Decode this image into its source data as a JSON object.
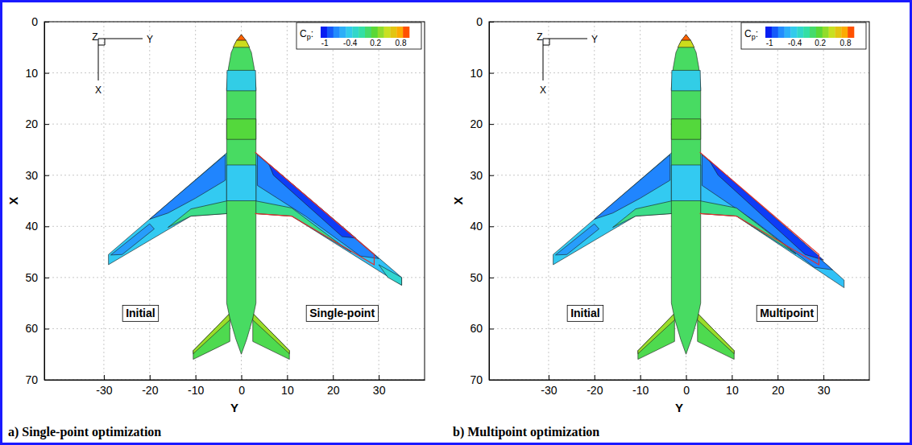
{
  "chart_data": [
    {
      "type": "contour",
      "title": "a) Single-point optimization",
      "xlabel": "Y",
      "ylabel": "X",
      "xlim": [
        -43,
        40
      ],
      "ylim": [
        0,
        70
      ],
      "xticks": [
        -30,
        -20,
        -10,
        0,
        10,
        20,
        30
      ],
      "yticks": [
        0,
        10,
        20,
        30,
        40,
        50,
        60,
        70
      ],
      "grid": true,
      "triad": {
        "z": "Z",
        "y": "Y",
        "x": "X"
      },
      "colorbar": {
        "label": "Cp:",
        "range": [
          -1.1,
          1.0
        ],
        "ticks": [
          -1,
          -0.4,
          0.2,
          0.8
        ]
      },
      "annotations": [
        {
          "text": "Initial",
          "x": -22,
          "y": 57
        },
        {
          "text": "Single-point",
          "x": 22,
          "y": 57
        }
      ],
      "regions": [
        {
          "points": [
            [
              -3,
              25.5
            ],
            [
              -29,
              45.5
            ],
            [
              -29,
              47.5
            ],
            [
              -11,
              38
            ],
            [
              -3,
              37.5
            ]
          ],
          "value": -0.45
        },
        {
          "points": [
            [
              -3.5,
              26
            ],
            [
              -14,
              34
            ],
            [
              -20,
              38.6
            ],
            [
              -16,
              37.4
            ],
            [
              -10,
              34.5
            ],
            [
              -3.5,
              31
            ]
          ],
          "value": -0.75
        },
        {
          "points": [
            [
              -20,
              39.5
            ],
            [
              -28.5,
              45.6
            ],
            [
              -26,
              45.5
            ],
            [
              -19,
              40.5
            ]
          ],
          "value": -0.65
        },
        {
          "points": [
            [
              -3,
              35
            ],
            [
              -11,
              36.6
            ],
            [
              -16,
              40.2
            ],
            [
              -11,
              38
            ],
            [
              -3,
              37.5
            ]
          ],
          "value": -0.05
        },
        {
          "points": [
            [
              3,
              25.5
            ],
            [
              35,
              50
            ],
            [
              35,
              51.5
            ],
            [
              11,
              38
            ],
            [
              3,
              37.5
            ]
          ],
          "value": -0.5
        },
        {
          "points": [
            [
              3.5,
              26
            ],
            [
              30,
              46.3
            ],
            [
              26,
              45.8
            ],
            [
              14,
              38
            ],
            [
              3.5,
              32
            ]
          ],
          "value": -0.75
        },
        {
          "points": [
            [
              6,
              27.8
            ],
            [
              25,
              42.3
            ],
            [
              22,
              42
            ],
            [
              7,
              30
            ]
          ],
          "value": -0.95
        },
        {
          "points": [
            [
              3,
              35
            ],
            [
              11,
              36.4
            ],
            [
              22,
              43.8
            ],
            [
              24,
              45
            ],
            [
              11,
              38
            ],
            [
              3,
              37.5
            ]
          ],
          "value": -0.05
        },
        {
          "points": [
            [
              30,
              47.5
            ],
            [
              35,
              50
            ],
            [
              35,
              51.5
            ],
            [
              32,
              50
            ]
          ],
          "value": -0.3
        },
        {
          "points": [
            [
              -2.5,
              57
            ],
            [
              -10.5,
              64.3
            ],
            [
              -10.5,
              66
            ],
            [
              -2.5,
              62.5
            ]
          ],
          "value": 0.1
        },
        {
          "points": [
            [
              -2.5,
              57
            ],
            [
              -10.5,
              64.3
            ],
            [
              -10.5,
              64.9
            ],
            [
              -2.5,
              58.3
            ]
          ],
          "value": 0.35
        },
        {
          "points": [
            [
              2.5,
              57
            ],
            [
              10.5,
              64.3
            ],
            [
              10.5,
              66
            ],
            [
              2.5,
              62.5
            ]
          ],
          "value": 0.1
        },
        {
          "points": [
            [
              2.5,
              57
            ],
            [
              10.5,
              64.3
            ],
            [
              10.5,
              64.9
            ],
            [
              2.5,
              58.3
            ]
          ],
          "value": 0.35
        },
        {
          "points": [
            [
              0,
              2.5
            ],
            [
              1.2,
              4
            ],
            [
              2.2,
              6
            ],
            [
              2.8,
              9
            ],
            [
              3.2,
              13
            ],
            [
              3.2,
              55
            ],
            [
              2.5,
              58
            ],
            [
              1.2,
              62
            ],
            [
              0,
              65
            ],
            [
              -1.2,
              62
            ],
            [
              -2.5,
              58
            ],
            [
              -3.2,
              55
            ],
            [
              -3.2,
              13
            ],
            [
              -2.8,
              9
            ],
            [
              -2.2,
              6
            ],
            [
              -1.2,
              4
            ]
          ],
          "value": 0.05
        },
        {
          "points": [
            [
              -3.1,
              9.5
            ],
            [
              3.1,
              9.5
            ],
            [
              3.2,
              13.5
            ],
            [
              -3.2,
              13.5
            ]
          ],
          "value": -0.4
        },
        {
          "points": [
            [
              -3.2,
              19
            ],
            [
              3.2,
              19
            ],
            [
              3.2,
              23
            ],
            [
              -3.2,
              23
            ]
          ],
          "value": 0.15
        },
        {
          "points": [
            [
              -3.2,
              28
            ],
            [
              3.2,
              28
            ],
            [
              3.2,
              35
            ],
            [
              -3.2,
              35
            ]
          ],
          "value": -0.45
        },
        {
          "points": [
            [
              1.8,
              5
            ],
            [
              -1.8,
              5
            ],
            [
              -1,
              3.6
            ],
            [
              1,
              3.6
            ]
          ],
          "value": 0.5
        },
        {
          "points": [
            [
              0,
              2.5
            ],
            [
              1,
              3.6
            ],
            [
              -1,
              3.6
            ]
          ],
          "value": 0.9
        }
      ],
      "outline": {
        "points": [
          [
            3,
            25.5
          ],
          [
            29,
            45.5
          ],
          [
            29,
            47.5
          ],
          [
            11,
            38
          ],
          [
            3,
            37.5
          ]
        ],
        "color": "#e03030"
      }
    },
    {
      "type": "contour",
      "title": "b) Multipoint optimization",
      "xlabel": "Y",
      "ylabel": "X",
      "xlim": [
        -43,
        40
      ],
      "ylim": [
        0,
        70
      ],
      "xticks": [
        -30,
        -20,
        -10,
        0,
        10,
        20,
        30
      ],
      "yticks": [
        0,
        10,
        20,
        30,
        40,
        50,
        60,
        70
      ],
      "grid": true,
      "triad": {
        "z": "Z",
        "y": "Y",
        "x": "X"
      },
      "colorbar": {
        "label": "Cp:",
        "range": [
          -1.1,
          1.0
        ],
        "ticks": [
          -1,
          -0.4,
          0.2,
          0.8
        ]
      },
      "annotations": [
        {
          "text": "Initial",
          "x": -22,
          "y": 57
        },
        {
          "text": "Multipoint",
          "x": 22,
          "y": 57
        }
      ],
      "regions": [
        {
          "points": [
            [
              -3,
              25.5
            ],
            [
              -29,
              45.5
            ],
            [
              -29,
              47.5
            ],
            [
              -11,
              38
            ],
            [
              -3,
              37.5
            ]
          ],
          "value": -0.45
        },
        {
          "points": [
            [
              -3.5,
              26
            ],
            [
              -14,
              34
            ],
            [
              -20,
              38.6
            ],
            [
              -16,
              37.4
            ],
            [
              -10,
              34.5
            ],
            [
              -3.5,
              31
            ]
          ],
          "value": -0.75
        },
        {
          "points": [
            [
              -20,
              39.5
            ],
            [
              -28.5,
              45.6
            ],
            [
              -26,
              45.5
            ],
            [
              -19,
              40.5
            ]
          ],
          "value": -0.65
        },
        {
          "points": [
            [
              -3,
              35
            ],
            [
              -11,
              36.6
            ],
            [
              -16,
              40.2
            ],
            [
              -11,
              38
            ],
            [
              -3,
              37.5
            ]
          ],
          "value": -0.05
        },
        {
          "points": [
            [
              3,
              25.5
            ],
            [
              34.5,
              50.5
            ],
            [
              34.5,
              52
            ],
            [
              11,
              38
            ],
            [
              3,
              37.5
            ]
          ],
          "value": -0.5
        },
        {
          "points": [
            [
              3.5,
              26
            ],
            [
              32,
              48.5
            ],
            [
              28,
              48
            ],
            [
              15,
              39
            ],
            [
              3.5,
              32
            ]
          ],
          "value": -0.75
        },
        {
          "points": [
            [
              5,
              27
            ],
            [
              30,
              46.6
            ],
            [
              26,
              45.5
            ],
            [
              7,
              30
            ]
          ],
          "value": -0.95
        },
        {
          "points": [
            [
              3,
              35
            ],
            [
              11,
              36.4
            ],
            [
              22,
              44
            ],
            [
              24,
              45.4
            ],
            [
              11,
              38
            ],
            [
              3,
              37.5
            ]
          ],
          "value": -0.05
        },
        {
          "points": [
            [
              -2.5,
              57
            ],
            [
              -10.5,
              64.3
            ],
            [
              -10.5,
              66
            ],
            [
              -2.5,
              62.5
            ]
          ],
          "value": 0.1
        },
        {
          "points": [
            [
              -2.5,
              57
            ],
            [
              -10.5,
              64.3
            ],
            [
              -10.5,
              64.9
            ],
            [
              -2.5,
              58.3
            ]
          ],
          "value": 0.35
        },
        {
          "points": [
            [
              2.5,
              57
            ],
            [
              10.5,
              64.3
            ],
            [
              10.5,
              66
            ],
            [
              2.5,
              62.5
            ]
          ],
          "value": 0.1
        },
        {
          "points": [
            [
              2.5,
              57
            ],
            [
              10.5,
              64.3
            ],
            [
              10.5,
              64.9
            ],
            [
              2.5,
              58.3
            ]
          ],
          "value": 0.35
        },
        {
          "points": [
            [
              0,
              2.5
            ],
            [
              1.2,
              4
            ],
            [
              2.2,
              6
            ],
            [
              2.8,
              9
            ],
            [
              3.2,
              13
            ],
            [
              3.2,
              55
            ],
            [
              2.5,
              58
            ],
            [
              1.2,
              62
            ],
            [
              0,
              65
            ],
            [
              -1.2,
              62
            ],
            [
              -2.5,
              58
            ],
            [
              -3.2,
              55
            ],
            [
              -3.2,
              13
            ],
            [
              -2.8,
              9
            ],
            [
              -2.2,
              6
            ],
            [
              -1.2,
              4
            ]
          ],
          "value": 0.05
        },
        {
          "points": [
            [
              -3.1,
              9.5
            ],
            [
              3.1,
              9.5
            ],
            [
              3.2,
              13.5
            ],
            [
              -3.2,
              13.5
            ]
          ],
          "value": -0.4
        },
        {
          "points": [
            [
              -3.2,
              19
            ],
            [
              3.2,
              19
            ],
            [
              3.2,
              23
            ],
            [
              -3.2,
              23
            ]
          ],
          "value": 0.15
        },
        {
          "points": [
            [
              -3.2,
              28
            ],
            [
              3.2,
              28
            ],
            [
              3.2,
              35
            ],
            [
              -3.2,
              35
            ]
          ],
          "value": -0.45
        },
        {
          "points": [
            [
              1.8,
              5
            ],
            [
              -1.8,
              5
            ],
            [
              -1,
              3.6
            ],
            [
              1,
              3.6
            ]
          ],
          "value": 0.5
        },
        {
          "points": [
            [
              0,
              2.5
            ],
            [
              1,
              3.6
            ],
            [
              -1,
              3.6
            ]
          ],
          "value": 0.9
        }
      ],
      "outline": {
        "points": [
          [
            3,
            25.5
          ],
          [
            29,
            45.5
          ],
          [
            29,
            47.5
          ],
          [
            11,
            38
          ],
          [
            3,
            37.5
          ]
        ],
        "color": "#e03030"
      }
    }
  ]
}
